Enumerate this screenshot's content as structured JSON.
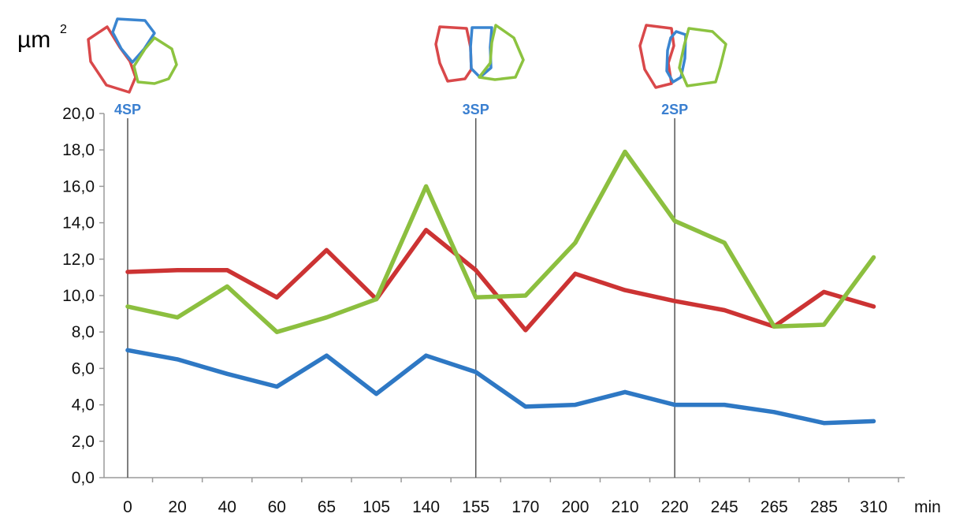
{
  "chart_data": {
    "type": "line",
    "ylabel": "µm",
    "ylabel_sup": "2",
    "xlabel": "min",
    "ylim": [
      0,
      20
    ],
    "yticks": [
      "0,0",
      "2,0",
      "4,0",
      "6,0",
      "8,0",
      "10,0",
      "12,0",
      "14,0",
      "16,0",
      "18,0",
      "20,0"
    ],
    "categories": [
      "0",
      "20",
      "40",
      "60",
      "65",
      "105",
      "140",
      "155",
      "170",
      "200",
      "210",
      "220",
      "245",
      "265",
      "285",
      "310"
    ],
    "grid": false,
    "series": [
      {
        "color": "#cc3333",
        "values": [
          11.3,
          11.4,
          11.4,
          9.9,
          12.5,
          9.8,
          13.6,
          11.4,
          8.1,
          11.2,
          10.3,
          9.7,
          9.2,
          8.3,
          10.2,
          9.4
        ]
      },
      {
        "color": "#8cbf3f",
        "values": [
          9.4,
          8.8,
          10.5,
          8.0,
          8.8,
          9.8,
          16.0,
          9.9,
          10.0,
          12.9,
          17.9,
          14.1,
          12.9,
          8.3,
          8.4,
          12.1
        ]
      },
      {
        "color": "#2e78c4",
        "values": [
          7.0,
          6.5,
          5.7,
          5.0,
          6.7,
          4.6,
          6.7,
          5.8,
          3.9,
          4.0,
          4.7,
          4.0,
          4.0,
          3.6,
          3.0,
          3.1
        ]
      }
    ],
    "markers": [
      {
        "label": "4SP",
        "at_index": 0
      },
      {
        "label": "3SP",
        "at_index": 7
      },
      {
        "label": "2SP",
        "at_index": 11
      }
    ],
    "marker_color": "#3a7fd0"
  }
}
